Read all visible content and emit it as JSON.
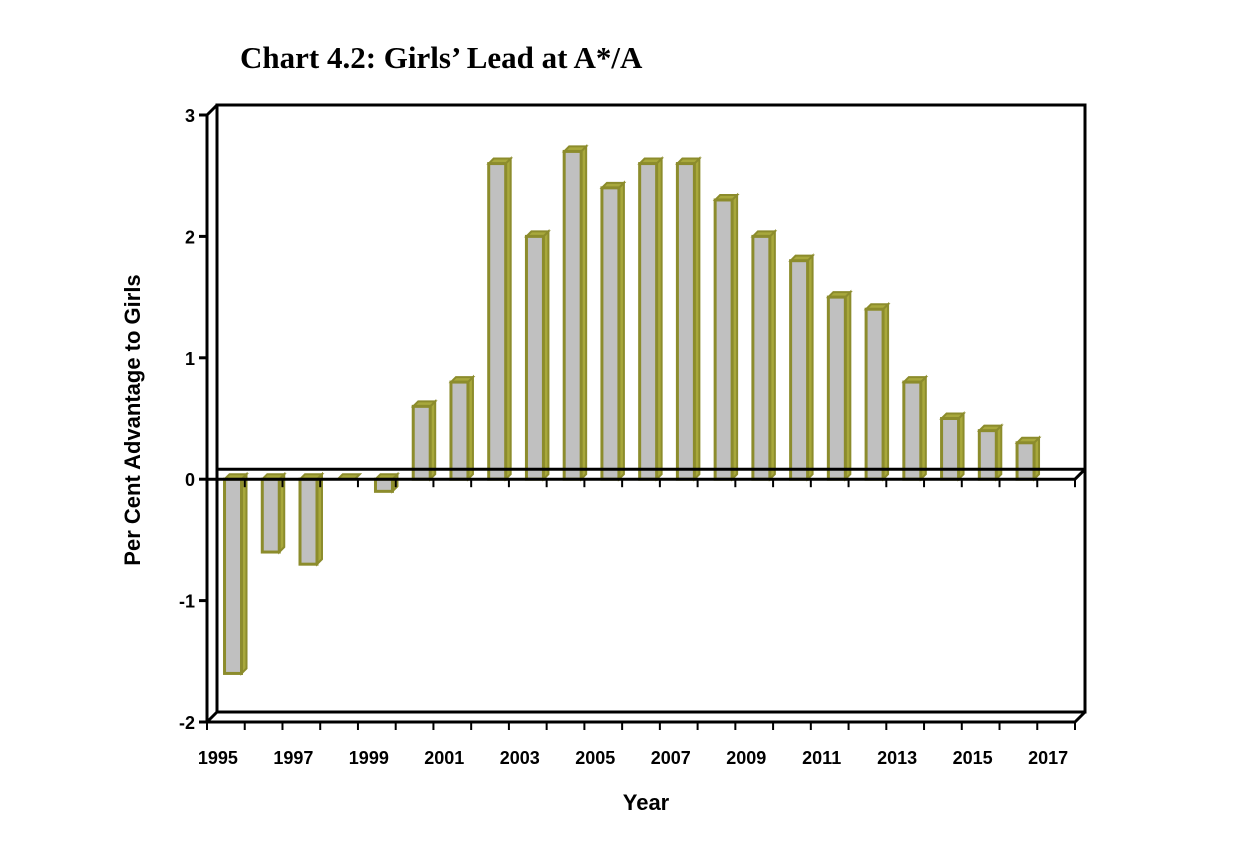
{
  "chart_data": {
    "type": "bar",
    "title": "Chart 4.2: Girls’ Lead at A*/A",
    "xlabel": "Year",
    "ylabel": "Per Cent Advantage to Girls",
    "ylim": [
      -2,
      3
    ],
    "yticks": [
      "-2",
      "-1",
      "0",
      "1",
      "2",
      "3"
    ],
    "xticks": [
      "1995",
      "1997",
      "1999",
      "2001",
      "2003",
      "2005",
      "2007",
      "2009",
      "2011",
      "2013",
      "2015",
      "2017"
    ],
    "categories": [
      "1995",
      "1996",
      "1997",
      "1998",
      "1999",
      "2000",
      "2001",
      "2002",
      "2003",
      "2004",
      "2005",
      "2006",
      "2007",
      "2008",
      "2009",
      "2010",
      "2011",
      "2012",
      "2013",
      "2014",
      "2015",
      "2016"
    ],
    "values": [
      -1.6,
      -0.6,
      -0.7,
      0.0,
      -0.1,
      0.6,
      0.8,
      2.6,
      2.0,
      2.7,
      2.4,
      2.6,
      2.6,
      2.3,
      2.0,
      1.8,
      1.5,
      1.4,
      0.8,
      0.5,
      0.4,
      0.3
    ],
    "bar_fill": "#c0c0c0",
    "bar_outline": "#8c8c2c",
    "bar_side": "#a8a83c",
    "legend": "none",
    "grid": false
  }
}
